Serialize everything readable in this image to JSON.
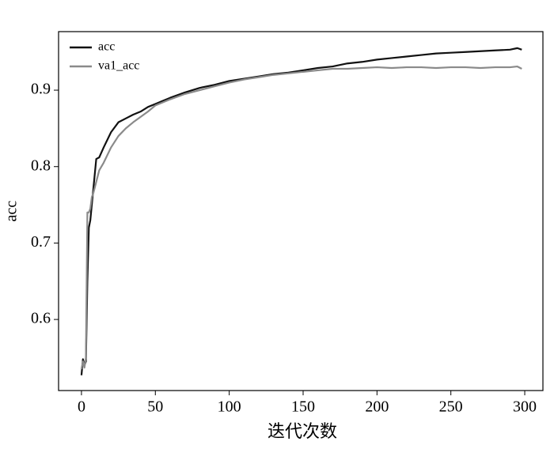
{
  "chart_data": {
    "type": "line",
    "x_label": "迭代次数",
    "y_label": "acc",
    "x": [
      0,
      1,
      2,
      3,
      4,
      5,
      6,
      7,
      8,
      10,
      12,
      15,
      20,
      25,
      30,
      35,
      40,
      45,
      50,
      60,
      70,
      80,
      90,
      100,
      110,
      120,
      130,
      140,
      150,
      160,
      170,
      180,
      190,
      200,
      210,
      220,
      230,
      240,
      250,
      260,
      270,
      280,
      290,
      295,
      298
    ],
    "series": [
      {
        "name": "acc",
        "color": "#111111",
        "values": [
          0.527,
          0.548,
          0.54,
          0.545,
          0.65,
          0.72,
          0.73,
          0.75,
          0.77,
          0.81,
          0.812,
          0.825,
          0.845,
          0.858,
          0.863,
          0.868,
          0.872,
          0.878,
          0.882,
          0.89,
          0.897,
          0.903,
          0.907,
          0.912,
          0.915,
          0.918,
          0.921,
          0.923,
          0.926,
          0.929,
          0.931,
          0.935,
          0.937,
          0.94,
          0.942,
          0.944,
          0.946,
          0.948,
          0.949,
          0.95,
          0.951,
          0.952,
          0.953,
          0.955,
          0.953
        ]
      },
      {
        "name": "va1_acc",
        "color": "#8a8a8a",
        "values": [
          0.535,
          0.545,
          0.537,
          0.55,
          0.74,
          0.74,
          0.745,
          0.76,
          0.765,
          0.78,
          0.795,
          0.805,
          0.825,
          0.84,
          0.85,
          0.858,
          0.865,
          0.872,
          0.88,
          0.888,
          0.895,
          0.9,
          0.905,
          0.91,
          0.914,
          0.917,
          0.92,
          0.922,
          0.924,
          0.926,
          0.928,
          0.928,
          0.929,
          0.93,
          0.929,
          0.93,
          0.93,
          0.929,
          0.93,
          0.93,
          0.929,
          0.93,
          0.93,
          0.931,
          0.928
        ]
      }
    ],
    "xlim": [
      -15.5,
      312.3
    ],
    "ylim": [
      0.507,
      0.9766
    ],
    "xticks": [
      0,
      50,
      100,
      150,
      200,
      250,
      300
    ],
    "yticks": [
      0.6,
      0.7,
      0.8,
      0.9
    ],
    "legend": "upper left",
    "grid": false
  }
}
